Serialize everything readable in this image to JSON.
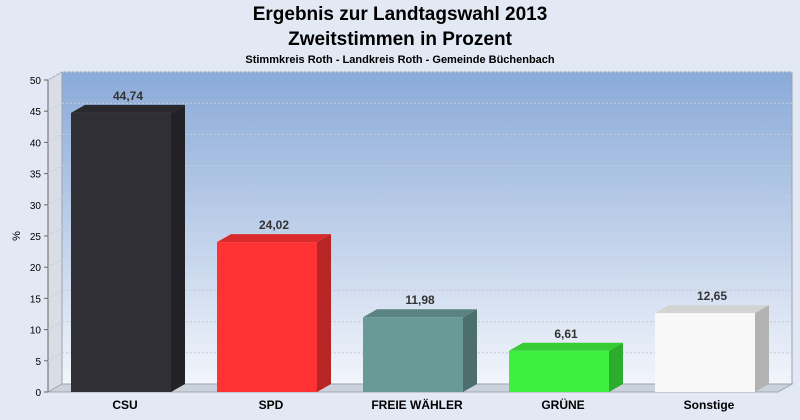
{
  "chart_data": {
    "type": "bar",
    "title": "Ergebnis zur Landtagswahl 2013",
    "subtitle": "Zweitstimmen in Prozent",
    "caption": "Stimmkreis Roth - Landkreis Roth - Gemeinde Büchenbach",
    "ylabel": "%",
    "xlabel": "",
    "ylim": [
      0,
      50
    ],
    "yticks": [
      0,
      5,
      10,
      15,
      20,
      25,
      30,
      35,
      40,
      45,
      50
    ],
    "grid": true,
    "categories": [
      "CSU",
      "SPD",
      "FREIE WÄHLER",
      "GRÜNE",
      "Sonstige"
    ],
    "values": [
      44.74,
      24.02,
      11.98,
      6.61,
      12.65
    ],
    "value_labels": [
      "44,74",
      "24,02",
      "11,98",
      "6,61",
      "12,65"
    ],
    "colors": [
      "#2f2f35",
      "#ff3333",
      "#6a9a98",
      "#3ef03e",
      "#f8f8f8"
    ]
  }
}
